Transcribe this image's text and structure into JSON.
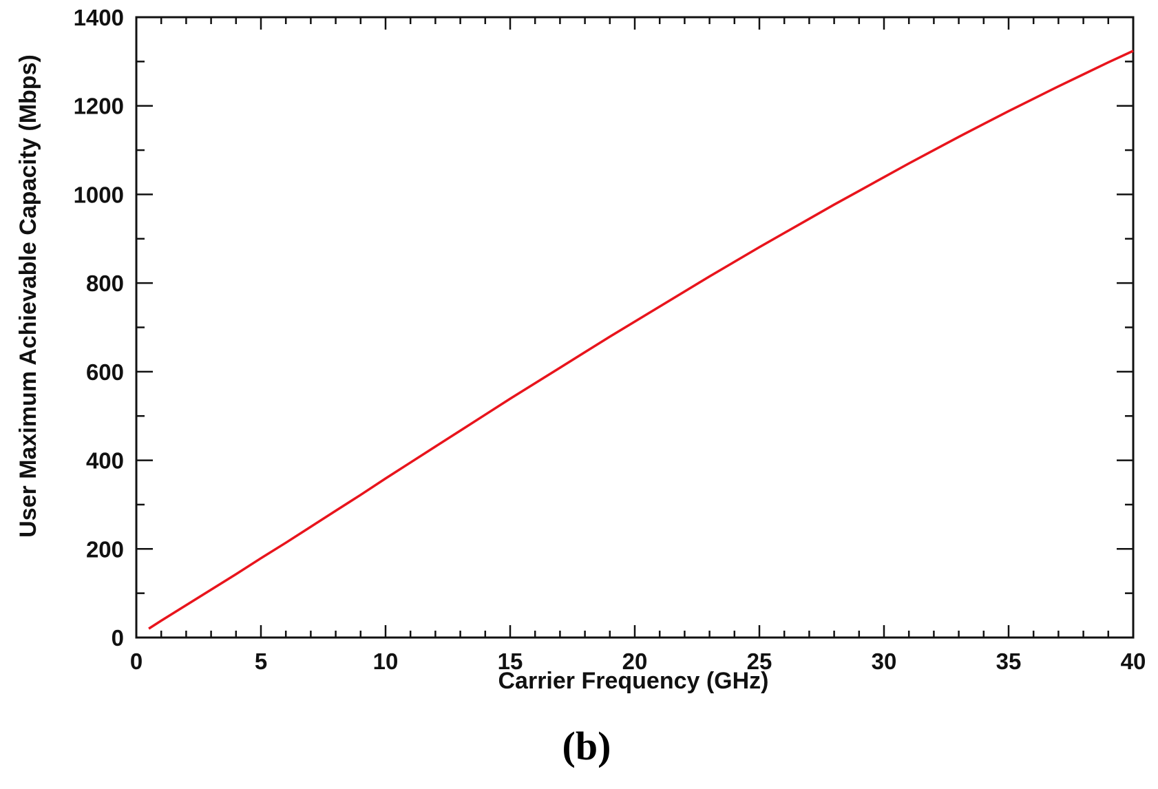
{
  "chart_data": {
    "type": "line",
    "title": "",
    "xlabel": "Carrier Frequency (GHz)",
    "ylabel": "User Maximum Achievable Capacity (Mbps)",
    "xlim": [
      0,
      40
    ],
    "ylim": [
      0,
      1400
    ],
    "xticks": [
      "0",
      "5",
      "10",
      "15",
      "20",
      "25",
      "30",
      "35",
      "40"
    ],
    "yticks": [
      "0",
      "200",
      "400",
      "600",
      "800",
      "1000",
      "1200",
      "1400"
    ],
    "grid": false,
    "legend": "none",
    "series": [
      {
        "color": "#e8141c",
        "x": [
          0.5,
          1,
          2,
          3,
          4,
          5,
          6,
          7,
          8,
          9,
          10,
          11,
          12,
          13,
          14,
          15,
          16,
          17,
          18,
          19,
          20,
          21,
          22,
          23,
          24,
          25,
          26,
          27,
          28,
          29,
          30,
          31,
          32,
          33,
          34,
          35,
          36,
          37,
          38,
          39,
          40
        ],
        "y": [
          20,
          38,
          73,
          108,
          143,
          179,
          214,
          250,
          286,
          322,
          359,
          395,
          431,
          467,
          503,
          539,
          574,
          609,
          644,
          679,
          713,
          747,
          781,
          815,
          848,
          881,
          913,
          945,
          977,
          1008,
          1039,
          1070,
          1100,
          1130,
          1159,
          1188,
          1216,
          1244,
          1271,
          1298,
          1324
        ]
      }
    ]
  },
  "panel_label": "(b)"
}
